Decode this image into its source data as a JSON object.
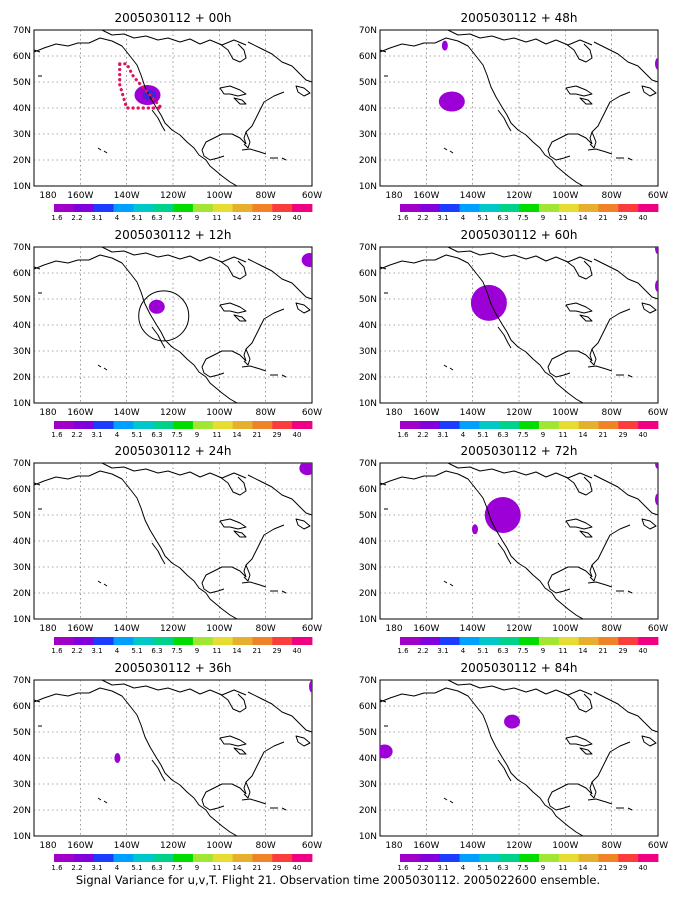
{
  "figure": {
    "footer": "Signal Variance for u,v,T. Flight 21. Observation time 2005030112. 2005022600 ensemble.",
    "x_ticks": [
      "180",
      "160W",
      "140W",
      "120W",
      "100W",
      "80W",
      "60W"
    ],
    "y_ticks": [
      "70N",
      "60N",
      "50N",
      "40N",
      "30N",
      "20N",
      "10N"
    ],
    "colorbar": {
      "labels": [
        "1.6",
        "2.2",
        "3.1",
        "4",
        "5.1",
        "6.3",
        "7.5",
        "9",
        "11",
        "14",
        "21",
        "29",
        "40"
      ],
      "colors": [
        "#a000c8",
        "#8200dc",
        "#1e3cff",
        "#00a0ff",
        "#00c8c8",
        "#00d28c",
        "#00dc00",
        "#a0e632",
        "#e6dc32",
        "#e6af2d",
        "#f08228",
        "#fa3c3c",
        "#f00082"
      ]
    },
    "accent": {
      "signal": "#9d00d6",
      "signal_dark": "#3a28d8",
      "flight_track": "#e0115f"
    }
  },
  "panels": [
    {
      "title": "2005030112 + 00h",
      "lead_hours": 0,
      "blobs": [
        {
          "lon": -131,
          "lat": 45,
          "size": "medium",
          "core": true
        }
      ],
      "flight_track": true
    },
    {
      "title": "2005030112 + 48h",
      "lead_hours": 48,
      "blobs": [
        {
          "lon": -149,
          "lat": 42.5,
          "size": "medium"
        },
        {
          "lon": -152,
          "lat": 64,
          "size": "tiny"
        },
        {
          "lon": -60,
          "lat": 57,
          "size": "sliver"
        }
      ]
    },
    {
      "title": "2005030112 + 12h",
      "lead_hours": 12,
      "blobs": [
        {
          "lon": -127,
          "lat": 47,
          "size": "small"
        },
        {
          "lon": -61,
          "lat": 65,
          "size": "small"
        }
      ],
      "target_circle": {
        "lon": -124,
        "lat": 43.5
      }
    },
    {
      "title": "2005030112 + 60h",
      "lead_hours": 60,
      "blobs": [
        {
          "lon": -133,
          "lat": 48.5,
          "size": "large"
        },
        {
          "lon": -60,
          "lat": 55,
          "size": "sliver"
        },
        {
          "lon": -60,
          "lat": 69.5,
          "size": "sliver"
        }
      ]
    },
    {
      "title": "2005030112 + 24h",
      "lead_hours": 24,
      "blobs": [
        {
          "lon": -62,
          "lat": 68,
          "size": "small"
        }
      ]
    },
    {
      "title": "2005030112 + 72h",
      "lead_hours": 72,
      "blobs": [
        {
          "lon": -127,
          "lat": 50,
          "size": "large"
        },
        {
          "lon": -139,
          "lat": 44.5,
          "size": "tiny"
        },
        {
          "lon": -60,
          "lat": 56,
          "size": "sliver"
        },
        {
          "lon": -60,
          "lat": 70,
          "size": "sliver"
        }
      ]
    },
    {
      "title": "2005030112 + 36h",
      "lead_hours": 36,
      "blobs": [
        {
          "lon": -144,
          "lat": 40,
          "size": "tiny"
        },
        {
          "lon": -60,
          "lat": 67.5,
          "size": "sliver"
        }
      ]
    },
    {
      "title": "2005030112 + 84h",
      "lead_hours": 84,
      "blobs": [
        {
          "lon": -123,
          "lat": 54,
          "size": "small"
        },
        {
          "lon": -178,
          "lat": 42.5,
          "size": "small"
        }
      ]
    }
  ]
}
